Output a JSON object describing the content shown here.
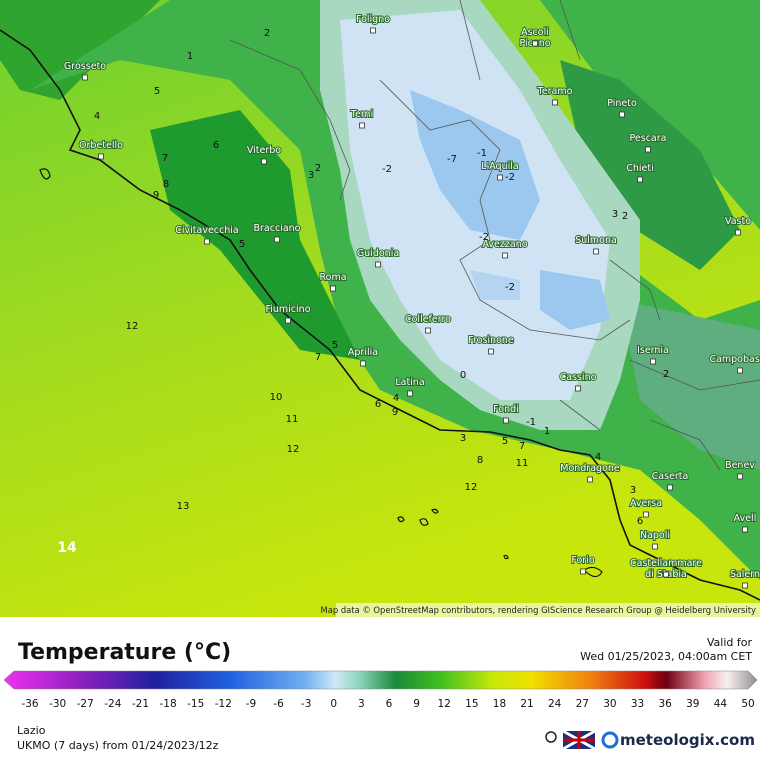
{
  "map": {
    "cities": [
      "Foligno",
      "Ascoli\nPiceno",
      "Grosseto",
      "Terni",
      "Teramo",
      "Pineto",
      "Orbetello",
      "Viterbo",
      "L'Aquila",
      "Pescara",
      "Chieti",
      "Civitavecchia",
      "Bracciano",
      "Vasto",
      "Sulmona",
      "Avezzano",
      "Guidonia",
      "Roma",
      "Fiumicino",
      "Colleferro",
      "Frosinone",
      "Aprilia",
      "Isernia",
      "Campobasso",
      "Cassino",
      "Latina",
      "Fondi",
      "Mondragone",
      "Caserta",
      "Benev",
      "Aversa",
      "Avell",
      "Napoli",
      "Forio",
      "Castellammare\ndi Stabia",
      "Salern"
    ],
    "contour_labels": [
      2,
      1,
      5,
      4,
      6,
      7,
      8,
      9,
      3,
      2,
      -2,
      -7,
      -1,
      -2,
      3,
      2,
      5,
      -2,
      -2,
      12,
      5,
      7,
      0,
      10,
      4,
      6,
      9,
      11,
      -1,
      1,
      12,
      3,
      5,
      7,
      8,
      11,
      4,
      2,
      12,
      3,
      6,
      13,
      14
    ],
    "attribution": "Map data © OpenStreetMap contributors, rendering GIScience Research Group @ Heidelberg University"
  },
  "legend": {
    "title": "Temperature (°C)",
    "valid_label": "Valid for",
    "valid_time": "Wed 01/25/2023, 04:00am CET",
    "ticks": [
      -36,
      -30,
      -27,
      -24,
      -21,
      -18,
      -15,
      -12,
      -9,
      -6,
      -3,
      0,
      3,
      6,
      9,
      12,
      15,
      18,
      21,
      24,
      27,
      30,
      33,
      36,
      39,
      44,
      50
    ]
  },
  "footer": {
    "region": "Lazio",
    "model": "UKMO (7 days) from 01/24/2023/12z",
    "brand": "meteologix.com"
  }
}
